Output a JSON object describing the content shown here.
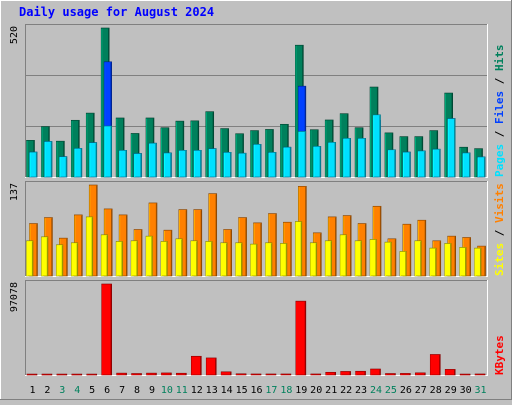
{
  "title": "Daily usage for August 2024",
  "colors": {
    "background": "#c0c0c0",
    "title": "#0000ff",
    "hits": "#00805c",
    "files": "#0040ff",
    "pages": "#00e0ff",
    "visits": "#ff8000",
    "sites": "#ffff00",
    "kbytes": "#ff0000",
    "weekend_label": "#00805c",
    "weekday_label": "#000000"
  },
  "chart_data": [
    {
      "type": "bar",
      "panel": "hits-files-pages",
      "y_max_label": "520",
      "ylim": [
        0,
        520
      ],
      "right_labels": [
        "Pages",
        "Files",
        "Hits"
      ],
      "categories": [
        "1",
        "2",
        "3",
        "4",
        "5",
        "6",
        "7",
        "8",
        "9",
        "10",
        "11",
        "12",
        "13",
        "14",
        "15",
        "16",
        "17",
        "18",
        "19",
        "20",
        "21",
        "22",
        "23",
        "24",
        "25",
        "26",
        "27",
        "28",
        "29",
        "30",
        "31"
      ],
      "series": [
        {
          "name": "Hits",
          "values": [
            128,
            176,
            125,
            198,
            223,
            520,
            206,
            152,
            206,
            172,
            195,
            196,
            228,
            169,
            151,
            162,
            166,
            184,
            460,
            165,
            199,
            221,
            172,
            314,
            154,
            141,
            141,
            162,
            293,
            104,
            99
          ]
        },
        {
          "name": "Files",
          "values": [
            87,
            124,
            71,
            100,
            120,
            402,
            93,
            82,
            118,
            84,
            93,
            93,
            99,
            86,
            83,
            114,
            86,
            104,
            317,
            107,
            121,
            135,
            135,
            198,
            95,
            87,
            91,
            97,
            204,
            84,
            70
          ]
        },
        {
          "name": "Pages",
          "values": [
            87,
            124,
            71,
            100,
            120,
            178,
            93,
            82,
            118,
            84,
            93,
            93,
            99,
            86,
            83,
            114,
            86,
            104,
            159,
            107,
            121,
            135,
            135,
            217,
            95,
            87,
            91,
            97,
            204,
            84,
            70
          ]
        }
      ]
    },
    {
      "type": "bar",
      "panel": "visits-sites",
      "y_max_label": "137",
      "ylim": [
        0,
        137
      ],
      "right_labels": [
        "Sites",
        "Visits"
      ],
      "categories": [
        "1",
        "2",
        "3",
        "4",
        "5",
        "6",
        "7",
        "8",
        "9",
        "10",
        "11",
        "12",
        "13",
        "14",
        "15",
        "16",
        "17",
        "18",
        "19",
        "20",
        "21",
        "22",
        "23",
        "24",
        "25",
        "26",
        "27",
        "28",
        "29",
        "30",
        "31"
      ],
      "series": [
        {
          "name": "Visits",
          "values": [
            79,
            88,
            57,
            92,
            137,
            101,
            92,
            70,
            110,
            69,
            100,
            100,
            124,
            70,
            88,
            80,
            94,
            81,
            135,
            65,
            89,
            91,
            79,
            105,
            56,
            78,
            84,
            53,
            60,
            58,
            45
          ]
        },
        {
          "name": "Sites",
          "values": [
            53,
            59,
            47,
            50,
            89,
            62,
            52,
            53,
            60,
            52,
            56,
            53,
            52,
            50,
            50,
            48,
            50,
            49,
            82,
            50,
            53,
            62,
            53,
            55,
            51,
            37,
            53,
            42,
            49,
            43,
            42
          ]
        }
      ]
    },
    {
      "type": "bar",
      "panel": "kbytes",
      "y_max_label": "97078",
      "ylim": [
        0,
        97078
      ],
      "right_labels": [
        "KBytes"
      ],
      "categories": [
        "1",
        "2",
        "3",
        "4",
        "5",
        "6",
        "7",
        "8",
        "9",
        "10",
        "11",
        "12",
        "13",
        "14",
        "15",
        "16",
        "17",
        "18",
        "19",
        "20",
        "21",
        "22",
        "23",
        "24",
        "25",
        "26",
        "27",
        "28",
        "29",
        "30",
        "31"
      ],
      "series": [
        {
          "name": "KBytes",
          "values": [
            1000,
            1000,
            1000,
            1000,
            1000,
            97078,
            2000,
            1600,
            2000,
            2200,
            1900,
            20000,
            18200,
            3400,
            1300,
            1100,
            1100,
            1100,
            78800,
            1100,
            2900,
            3800,
            4000,
            6400,
            1600,
            1700,
            2300,
            21900,
            6000,
            1000,
            1100
          ]
        }
      ]
    }
  ],
  "weekend_days": [
    3,
    4,
    10,
    11,
    17,
    18,
    24,
    25,
    31
  ]
}
